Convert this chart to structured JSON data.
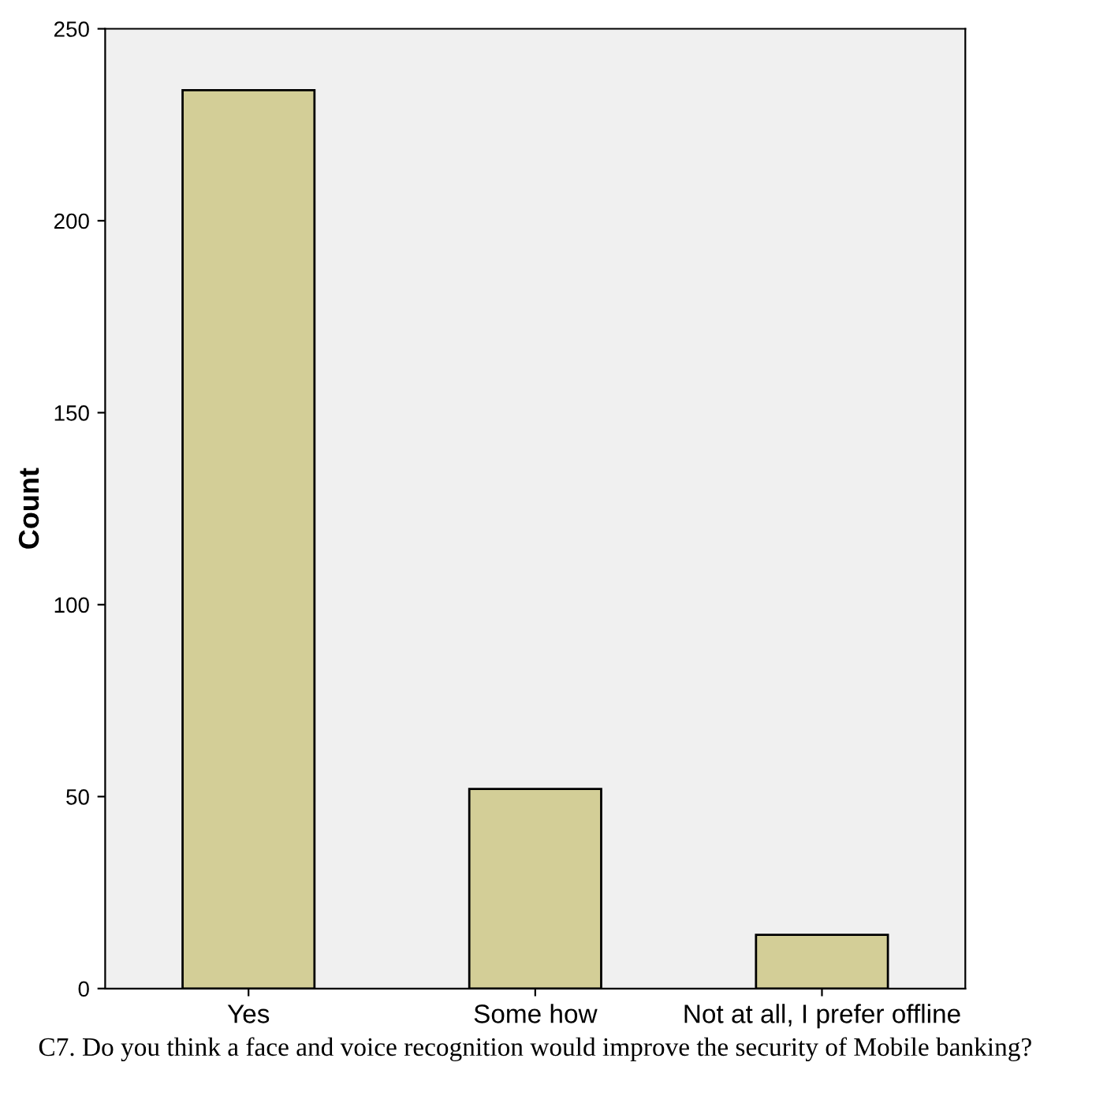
{
  "chart_data": {
    "type": "bar",
    "ylabel": "Count",
    "xlabel": "C7. Do you think a face and voice recognition would improve the security of Mobile banking?",
    "categories": [
      "Yes",
      "Some how",
      "Not at all, I prefer offline"
    ],
    "values": [
      234,
      52,
      14
    ],
    "color": "#d3ce97",
    "ylim": [
      0,
      250
    ],
    "yticks": [
      0,
      50,
      100,
      150,
      200,
      250
    ],
    "grid": false
  }
}
